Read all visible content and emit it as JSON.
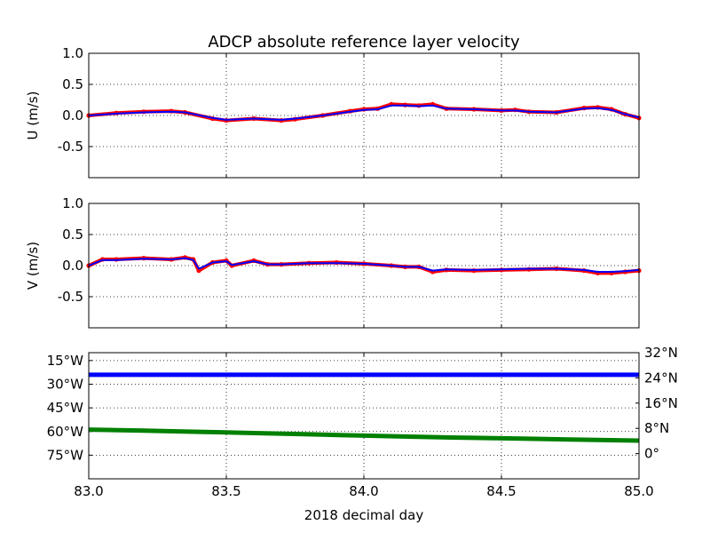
{
  "chart_data": {
    "type": "line",
    "title": "ADCP absolute reference layer velocity",
    "xlabel": "2018 decimal day",
    "xlim": [
      83.0,
      85.0
    ],
    "x_ticks": [
      "83.0",
      "83.5",
      "84.0",
      "84.5",
      "85.0"
    ],
    "grid": true,
    "panels": [
      {
        "ylabel": "U (m/s)",
        "ylim": [
          -1.0,
          1.0
        ],
        "y_ticks": [
          "1.0",
          "0.5",
          "0.0",
          "-0.5"
        ],
        "series": [
          {
            "style": "points",
            "color": "#ff0000",
            "x": [
              83.0,
              83.1,
              83.2,
              83.3,
              83.35,
              83.45,
              83.5,
              83.6,
              83.7,
              83.75,
              83.85,
              83.95,
              84.0,
              84.05,
              84.1,
              84.15,
              84.2,
              84.25,
              84.3,
              84.4,
              84.5,
              84.55,
              84.6,
              84.7,
              84.8,
              84.85,
              84.9,
              84.95,
              85.0
            ],
            "y": [
              0.0,
              0.04,
              0.06,
              0.07,
              0.05,
              -0.05,
              -0.08,
              -0.05,
              -0.08,
              -0.06,
              0.0,
              0.07,
              0.1,
              0.11,
              0.18,
              0.17,
              0.16,
              0.18,
              0.11,
              0.1,
              0.08,
              0.09,
              0.06,
              0.05,
              0.12,
              0.13,
              0.1,
              0.02,
              -0.04
            ]
          },
          {
            "style": "line",
            "color": "#0000ff",
            "x": [
              83.0,
              83.1,
              83.2,
              83.3,
              83.35,
              83.45,
              83.5,
              83.6,
              83.7,
              83.75,
              83.85,
              83.95,
              84.0,
              84.05,
              84.1,
              84.15,
              84.2,
              84.25,
              84.3,
              84.4,
              84.5,
              84.55,
              84.6,
              84.7,
              84.8,
              84.85,
              84.9,
              84.95,
              85.0
            ],
            "y": [
              0.0,
              0.03,
              0.05,
              0.06,
              0.05,
              -0.04,
              -0.07,
              -0.05,
              -0.07,
              -0.05,
              0.0,
              0.06,
              0.09,
              0.1,
              0.16,
              0.16,
              0.15,
              0.16,
              0.11,
              0.1,
              0.08,
              0.08,
              0.06,
              0.05,
              0.11,
              0.12,
              0.09,
              0.02,
              -0.03
            ]
          }
        ]
      },
      {
        "ylabel": "V (m/s)",
        "ylim": [
          -1.0,
          1.0
        ],
        "y_ticks": [
          "1.0",
          "0.5",
          "0.0",
          "-0.5"
        ],
        "series": [
          {
            "style": "points",
            "color": "#ff0000",
            "x": [
              83.0,
              83.05,
              83.1,
              83.2,
              83.3,
              83.35,
              83.38,
              83.4,
              83.45,
              83.5,
              83.52,
              83.6,
              83.65,
              83.7,
              83.8,
              83.9,
              84.0,
              84.1,
              84.15,
              84.2,
              84.25,
              84.3,
              84.4,
              84.5,
              84.6,
              84.7,
              84.8,
              84.85,
              84.9,
              84.95,
              85.0
            ],
            "y": [
              0.0,
              0.1,
              0.1,
              0.12,
              0.1,
              0.13,
              0.1,
              -0.08,
              0.05,
              0.08,
              0.0,
              0.08,
              0.02,
              0.02,
              0.04,
              0.05,
              0.03,
              0.0,
              -0.02,
              -0.02,
              -0.1,
              -0.07,
              -0.08,
              -0.07,
              -0.06,
              -0.05,
              -0.08,
              -0.12,
              -0.12,
              -0.1,
              -0.08
            ]
          },
          {
            "style": "line",
            "color": "#0000ff",
            "x": [
              83.0,
              83.05,
              83.1,
              83.2,
              83.3,
              83.35,
              83.38,
              83.4,
              83.45,
              83.5,
              83.52,
              83.6,
              83.65,
              83.7,
              83.8,
              83.9,
              84.0,
              84.1,
              84.15,
              84.2,
              84.25,
              84.3,
              84.4,
              84.5,
              84.6,
              84.7,
              84.8,
              84.85,
              84.9,
              84.95,
              85.0
            ],
            "y": [
              0.0,
              0.09,
              0.09,
              0.11,
              0.1,
              0.12,
              0.09,
              -0.05,
              0.05,
              0.07,
              0.01,
              0.07,
              0.02,
              0.02,
              0.04,
              0.04,
              0.03,
              0.0,
              -0.02,
              -0.02,
              -0.08,
              -0.06,
              -0.07,
              -0.06,
              -0.05,
              -0.05,
              -0.07,
              -0.1,
              -0.1,
              -0.09,
              -0.07
            ]
          }
        ]
      },
      {
        "ylim": [
          -90,
          -10
        ],
        "y_ticks": [
          "15°W",
          "30°W",
          "45°W",
          "60°W",
          "75°W"
        ],
        "y_tick_values": [
          -15,
          -30,
          -45,
          -60,
          -75
        ],
        "y_tick_color": "#0000ff",
        "y2lim": [
          -8,
          32
        ],
        "y2_ticks": [
          "32°N",
          "24°N",
          "16°N",
          "8°N",
          "0°"
        ],
        "y2_tick_values": [
          32,
          24,
          16,
          8,
          0
        ],
        "y2_tick_color": "#008000",
        "series": [
          {
            "style": "thick-line",
            "color": "#0000ff",
            "axis": "left",
            "x": [
              83.0,
              85.0
            ],
            "y": [
              -24.0,
              -24.0
            ]
          },
          {
            "style": "thick-line",
            "color": "#008000",
            "axis": "right",
            "x": [
              83.0,
              83.2,
              83.4,
              83.6,
              83.8,
              84.0,
              84.2,
              84.4,
              84.6,
              84.8,
              85.0
            ],
            "y": [
              7.6,
              7.3,
              6.9,
              6.5,
              6.1,
              5.7,
              5.3,
              5.0,
              4.7,
              4.4,
              4.1
            ]
          }
        ]
      }
    ]
  }
}
